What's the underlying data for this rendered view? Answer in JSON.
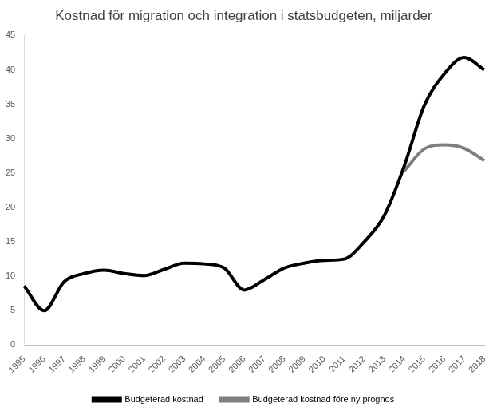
{
  "chart_data": {
    "type": "line",
    "title": "Kostnad för migration och integration i statsbudgeten, miljarder",
    "categories": [
      "1995",
      "1996",
      "1997",
      "1998",
      "1999",
      "2000",
      "2001",
      "2002",
      "2003",
      "2004",
      "2005",
      "2006",
      "2007",
      "2008",
      "2009",
      "2010",
      "2011",
      "2012",
      "2013",
      "2014",
      "2015",
      "2016",
      "2017",
      "2018"
    ],
    "series": [
      {
        "name": "Budgeterad kostnad",
        "color": "#000000",
        "marker": "none",
        "line_style": "solid",
        "values": [
          8.6,
          5.0,
          9.2,
          10.4,
          10.9,
          10.4,
          10.1,
          11.0,
          11.9,
          11.8,
          11.2,
          8.0,
          9.5,
          11.2,
          11.9,
          12.3,
          12.5,
          15.0,
          18.8,
          26.0,
          34.8,
          39.4,
          41.8,
          40.0
        ]
      },
      {
        "name": "Budgeterad kostnad före ny prognos",
        "color": "#7f7f7f",
        "marker": "none",
        "line_style": "solid",
        "values": [
          null,
          null,
          null,
          null,
          null,
          null,
          null,
          null,
          null,
          null,
          null,
          null,
          null,
          null,
          null,
          null,
          null,
          null,
          null,
          25.3,
          28.5,
          29.1,
          28.6,
          26.8
        ]
      }
    ],
    "ylim": [
      0,
      45
    ],
    "yticks": [
      0,
      5,
      10,
      15,
      20,
      25,
      30,
      35,
      40,
      45
    ],
    "grid": false,
    "legend": "bottom"
  }
}
